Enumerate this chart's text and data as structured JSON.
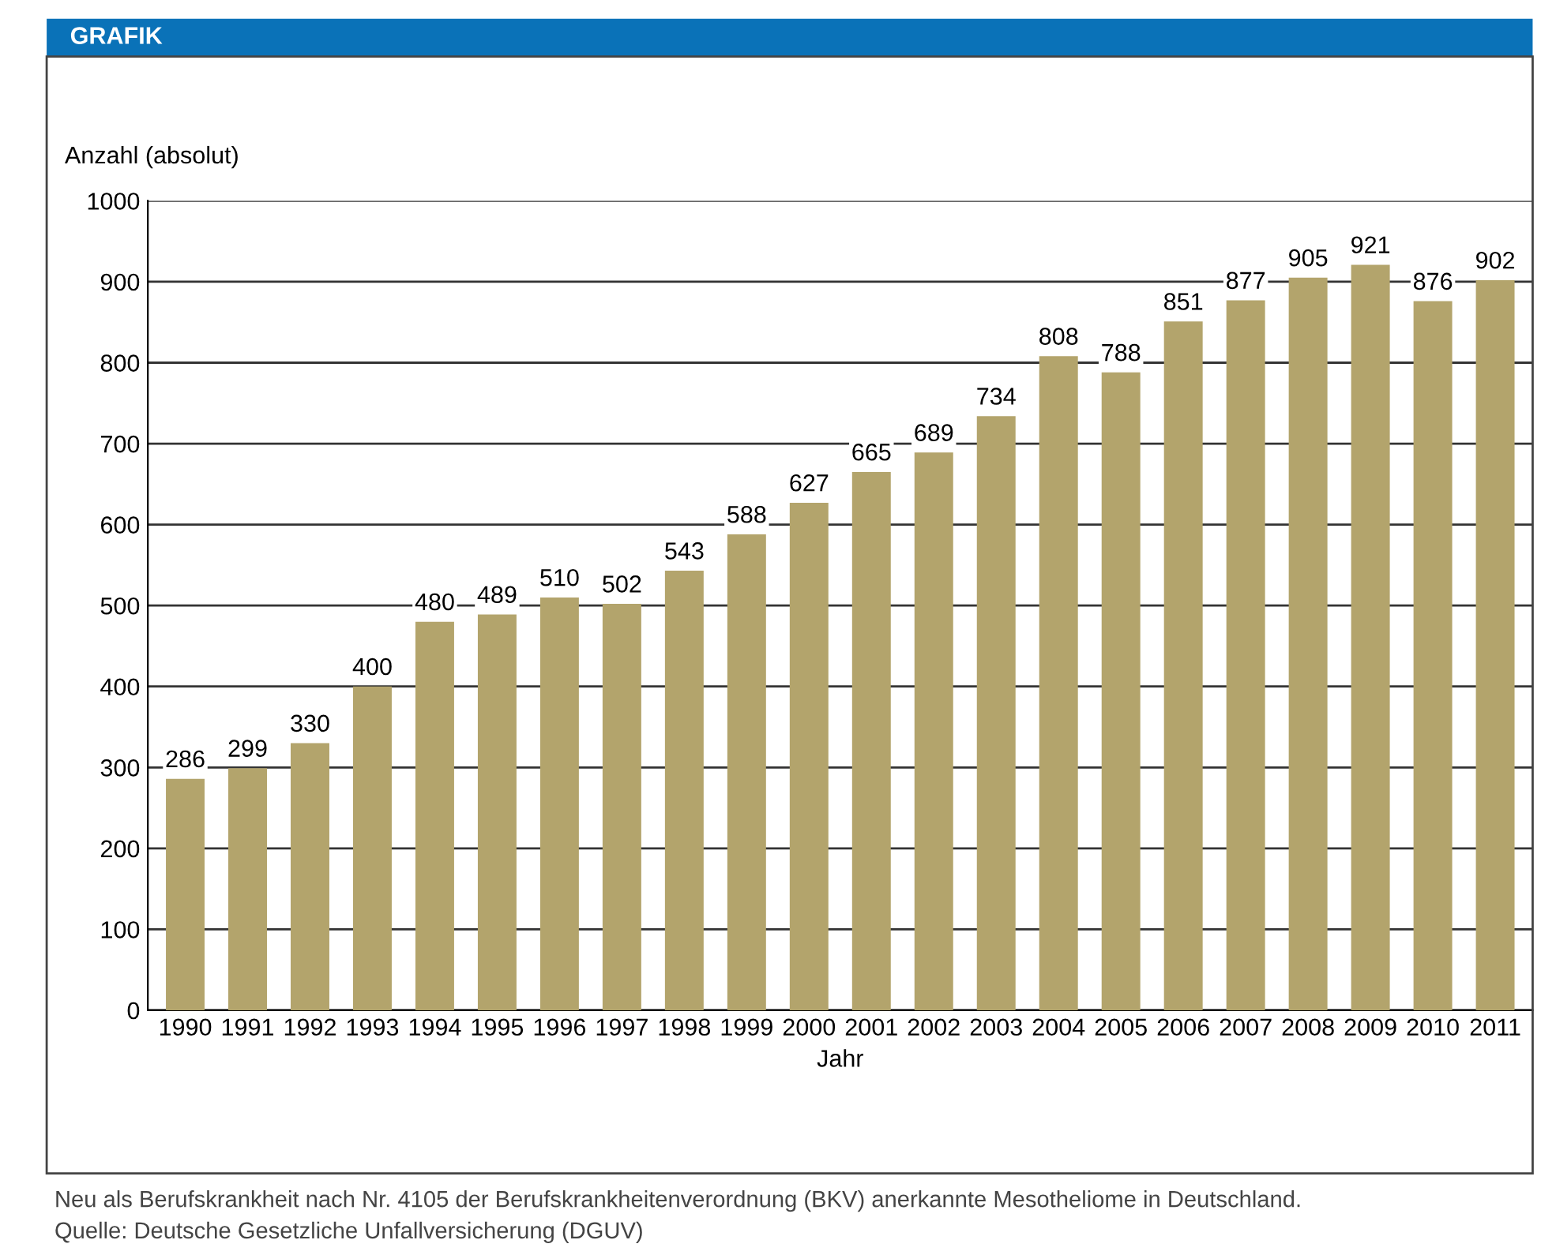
{
  "chart_data": {
    "type": "bar",
    "title": "GRAFIK",
    "ylabel": "Anzahl (absolut)",
    "xlabel": "Jahr",
    "categories": [
      "1990",
      "1991",
      "1992",
      "1993",
      "1994",
      "1995",
      "1996",
      "1997",
      "1998",
      "1999",
      "2000",
      "2001",
      "2002",
      "2003",
      "2004",
      "2005",
      "2006",
      "2007",
      "2008",
      "2009",
      "2010",
      "2011"
    ],
    "values": [
      286,
      299,
      330,
      400,
      480,
      489,
      510,
      502,
      543,
      588,
      627,
      665,
      689,
      734,
      808,
      788,
      851,
      877,
      905,
      921,
      876,
      902
    ],
    "color": "#b3a46c",
    "ylim": [
      0,
      1000
    ],
    "yticks": [
      0,
      100,
      200,
      300,
      400,
      500,
      600,
      700,
      800,
      900,
      1000
    ],
    "grid": "y",
    "data_labels": true,
    "annotations": [
      "Neu als Berufskrankheit nach Nr. 4105 der Berufskrankheitenverordnung (BKV) anerkannte Mesotheliome in Deutschland.",
      "Quelle: Deutsche Gesetzliche Unfallversicherung (DGUV)"
    ]
  }
}
